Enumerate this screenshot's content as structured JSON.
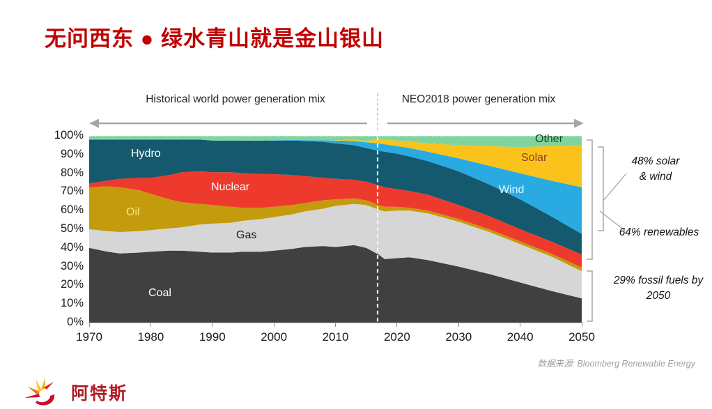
{
  "title": "无问西东 ● 绿水青山就是金山银山",
  "chart_data": {
    "type": "area",
    "stacked": true,
    "unit": "%",
    "xlim": [
      1970,
      2050
    ],
    "ylim": [
      0,
      100
    ],
    "grid": false,
    "legend": "labels-inside-areas",
    "divider_year": 2017,
    "section_labels": {
      "historical": "Historical world power generation mix",
      "projection": "NEO2018 power generation mix"
    },
    "x": [
      1970,
      1973,
      1975,
      1978,
      1980,
      1983,
      1985,
      1988,
      1990,
      1993,
      1995,
      1998,
      2000,
      2003,
      2005,
      2008,
      2010,
      2013,
      2015,
      2017,
      2018,
      2020,
      2022,
      2025,
      2030,
      2035,
      2040,
      2045,
      2050
    ],
    "series": [
      {
        "name": "Coal",
        "color": "#404040",
        "label_color": "#ffffff",
        "values": [
          40,
          38,
          37,
          37.5,
          38,
          38.5,
          38.5,
          38,
          37.5,
          37.5,
          38,
          38,
          38.5,
          39.5,
          40.5,
          41,
          40.5,
          41.5,
          40,
          36.5,
          34,
          34.5,
          35,
          33.5,
          30,
          26,
          21.5,
          17,
          13
        ]
      },
      {
        "name": "Gas",
        "color": "#D6D6D6",
        "label_color": "#1a1a1a",
        "values": [
          10,
          11,
          11.5,
          11.5,
          11.5,
          12,
          12.5,
          14.5,
          15.5,
          16,
          16.5,
          17.5,
          18,
          18.5,
          19,
          20,
          22,
          22,
          23,
          24,
          25.5,
          25.5,
          25,
          25,
          24,
          22.5,
          20.5,
          18.5,
          14.5
        ]
      },
      {
        "name": "Oil",
        "color": "#C49B0C",
        "label_color": "#FFE37E",
        "values": [
          22.5,
          24,
          24,
          22,
          19.5,
          15.5,
          13.5,
          11,
          10,
          8.5,
          7,
          6,
          5.5,
          5,
          4.5,
          4.5,
          3.5,
          3,
          2.5,
          2.5,
          2.5,
          2,
          1.5,
          1.5,
          1.5,
          1.5,
          1.5,
          1.5,
          2
        ]
      },
      {
        "name": "Nuclear",
        "color": "#EE3A2C",
        "label_color": "#ffffff",
        "values": [
          2,
          3,
          4.5,
          6.5,
          8.5,
          13,
          16,
          17.5,
          17.5,
          18.5,
          18.5,
          18,
          17.5,
          16,
          14.5,
          12,
          11,
          10,
          10,
          10.5,
          10.5,
          9.5,
          9,
          8.5,
          7.5,
          7,
          6.5,
          6.5,
          7
        ]
      },
      {
        "name": "Hydro",
        "color": "#15596F",
        "label_color": "#ffffff",
        "values": [
          23.5,
          22,
          21,
          20.5,
          20.5,
          19,
          17.5,
          17,
          17,
          17,
          17.5,
          18,
          18,
          18.5,
          18.8,
          19.3,
          19,
          18.5,
          18,
          18.5,
          19,
          19,
          18.5,
          18,
          18,
          17,
          16,
          13.5,
          11
        ]
      },
      {
        "name": "Wind",
        "color": "#29ABE2",
        "label_color": "#E3F6FF",
        "values": [
          0,
          0,
          0,
          0,
          0,
          0,
          0,
          0,
          0,
          0,
          0,
          0,
          0.2,
          0.3,
          0.4,
          0.8,
          1.5,
          2.3,
          3,
          4,
          4,
          4,
          4.5,
          5,
          7,
          10,
          14,
          19,
          25
        ]
      },
      {
        "name": "Solar",
        "color": "#F9C31B",
        "label_color": "#93392A",
        "values": [
          0,
          0,
          0,
          0,
          0,
          0,
          0,
          0,
          0,
          0,
          0,
          0,
          0,
          0,
          0,
          0,
          0.2,
          0.7,
          0.8,
          2,
          2.5,
          3,
          3.5,
          4.5,
          7,
          10.5,
          14,
          18.5,
          22.5
        ]
      },
      {
        "name": "Other",
        "color": "#7FD49E",
        "label_color": "#143D1E",
        "values": [
          2,
          2,
          2,
          2,
          2,
          2,
          2,
          2,
          2.5,
          2.5,
          2.5,
          2.5,
          2.3,
          2.2,
          2.3,
          2.4,
          2.3,
          2,
          2.7,
          2,
          2,
          2.5,
          3,
          4,
          5,
          5.5,
          6,
          5.5,
          5
        ]
      }
    ],
    "y_ticks": [
      "100%",
      "90%",
      "80%",
      "70%",
      "60%",
      "50%",
      "40%",
      "30%",
      "20%",
      "10%",
      "0%"
    ],
    "x_ticks": [
      "1970",
      "1980",
      "1990",
      "2000",
      "2010",
      "2020",
      "2030",
      "2040",
      "2050"
    ],
    "annotations": [
      {
        "id": "solar_wind",
        "text": "48% solar & wind"
      },
      {
        "id": "renewables",
        "text": "64% renewables"
      },
      {
        "id": "fossil",
        "text": "29% fossil fuels by 2050"
      }
    ]
  },
  "source": {
    "text": "数据来源: Bloomberg Renewable Energy"
  },
  "footer": {
    "company": "阿特斯",
    "icon": "sun-rays-icon"
  }
}
